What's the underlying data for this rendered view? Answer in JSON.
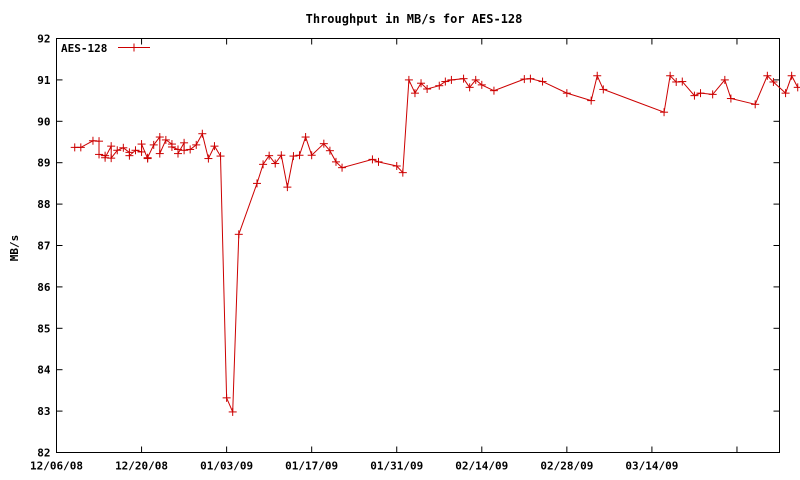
{
  "chart_data": {
    "type": "line",
    "title": "Throughput in MB/s for AES-128",
    "xlabel": "",
    "ylabel": "MB/s",
    "x_ticks": [
      "12/06/08",
      "12/20/08",
      "01/03/09",
      "01/17/09",
      "01/31/09",
      "02/14/09",
      "02/28/09",
      "03/14/09"
    ],
    "y_ticks": [
      "82",
      "83",
      "84",
      "85",
      "86",
      "87",
      "88",
      "89",
      "90",
      "91",
      "92"
    ],
    "xlim": [
      "2008-12-06",
      "2009-04-04"
    ],
    "ylim": [
      82,
      92
    ],
    "grid": false,
    "legend_position": "top-left",
    "colors": {
      "series": "#cc0000",
      "axis": "#000000",
      "background": "#ffffff"
    },
    "series": [
      {
        "name": "AES-128",
        "marker": "plus",
        "points": [
          [
            "2008-12-09",
            89.37
          ],
          [
            "2008-12-10",
            89.37
          ],
          [
            "2008-12-12",
            89.53
          ],
          [
            "2008-12-13",
            89.52
          ],
          [
            "2008-12-13",
            89.2
          ],
          [
            "2008-12-14",
            89.17
          ],
          [
            "2008-12-14",
            89.12
          ],
          [
            "2008-12-15",
            89.4
          ],
          [
            "2008-12-15",
            89.11
          ],
          [
            "2008-12-16",
            89.3
          ],
          [
            "2008-12-17",
            89.36
          ],
          [
            "2008-12-18",
            89.25
          ],
          [
            "2008-12-18",
            89.17
          ],
          [
            "2008-12-19",
            89.3
          ],
          [
            "2008-12-20",
            89.26
          ],
          [
            "2008-12-20",
            89.45
          ],
          [
            "2008-12-21",
            89.1
          ],
          [
            "2008-12-21",
            89.12
          ],
          [
            "2008-12-22",
            89.43
          ],
          [
            "2008-12-23",
            89.62
          ],
          [
            "2008-12-23",
            89.22
          ],
          [
            "2008-12-24",
            89.55
          ],
          [
            "2008-12-25",
            89.45
          ],
          [
            "2008-12-25",
            89.38
          ],
          [
            "2008-12-26",
            89.32
          ],
          [
            "2008-12-26",
            89.22
          ],
          [
            "2008-12-27",
            89.48
          ],
          [
            "2008-12-27",
            89.3
          ],
          [
            "2008-12-28",
            89.32
          ],
          [
            "2008-12-29",
            89.43
          ],
          [
            "2008-12-30",
            89.7
          ],
          [
            "2008-12-31",
            89.1
          ],
          [
            "2009-01-01",
            89.4
          ],
          [
            "2009-01-02",
            89.16
          ],
          [
            "2009-01-03",
            83.32
          ],
          [
            "2009-01-04",
            82.98
          ],
          [
            "2009-01-05",
            87.27
          ],
          [
            "2009-01-08",
            88.5
          ],
          [
            "2009-01-09",
            88.96
          ],
          [
            "2009-01-10",
            89.17
          ],
          [
            "2009-01-11",
            88.98
          ],
          [
            "2009-01-12",
            89.18
          ],
          [
            "2009-01-13",
            88.41
          ],
          [
            "2009-01-14",
            89.16
          ],
          [
            "2009-01-15",
            89.18
          ],
          [
            "2009-01-16",
            89.62
          ],
          [
            "2009-01-17",
            89.18
          ],
          [
            "2009-01-19",
            89.46
          ],
          [
            "2009-01-20",
            89.29
          ],
          [
            "2009-01-21",
            89.02
          ],
          [
            "2009-01-22",
            88.88
          ],
          [
            "2009-01-27",
            89.08
          ],
          [
            "2009-01-28",
            89.02
          ],
          [
            "2009-01-31",
            88.92
          ],
          [
            "2009-02-01",
            88.76
          ],
          [
            "2009-02-02",
            91.0
          ],
          [
            "2009-02-03",
            90.68
          ],
          [
            "2009-02-04",
            90.92
          ],
          [
            "2009-02-05",
            90.78
          ],
          [
            "2009-02-07",
            90.86
          ],
          [
            "2009-02-08",
            90.96
          ],
          [
            "2009-02-09",
            91.0
          ],
          [
            "2009-02-11",
            91.03
          ],
          [
            "2009-02-12",
            90.82
          ],
          [
            "2009-02-13",
            91.0
          ],
          [
            "2009-02-14",
            90.88
          ],
          [
            "2009-02-16",
            90.74
          ],
          [
            "2009-02-21",
            91.02
          ],
          [
            "2009-02-22",
            91.03
          ],
          [
            "2009-02-24",
            90.96
          ],
          [
            "2009-02-28",
            90.68
          ],
          [
            "2009-03-04",
            90.5
          ],
          [
            "2009-03-05",
            91.1
          ],
          [
            "2009-03-06",
            90.77
          ],
          [
            "2009-03-16",
            90.22
          ],
          [
            "2009-03-17",
            91.1
          ],
          [
            "2009-03-18",
            90.95
          ],
          [
            "2009-03-19",
            90.96
          ],
          [
            "2009-03-21",
            90.62
          ],
          [
            "2009-03-22",
            90.68
          ],
          [
            "2009-03-24",
            90.65
          ],
          [
            "2009-03-26",
            91.0
          ],
          [
            "2009-03-27",
            90.55
          ],
          [
            "2009-03-31",
            90.41
          ],
          [
            "2009-04-02",
            91.1
          ],
          [
            "2009-04-03",
            90.95
          ],
          [
            "2009-04-05",
            90.68
          ],
          [
            "2009-04-06",
            91.1
          ],
          [
            "2009-04-07",
            90.82
          ]
        ]
      }
    ]
  }
}
